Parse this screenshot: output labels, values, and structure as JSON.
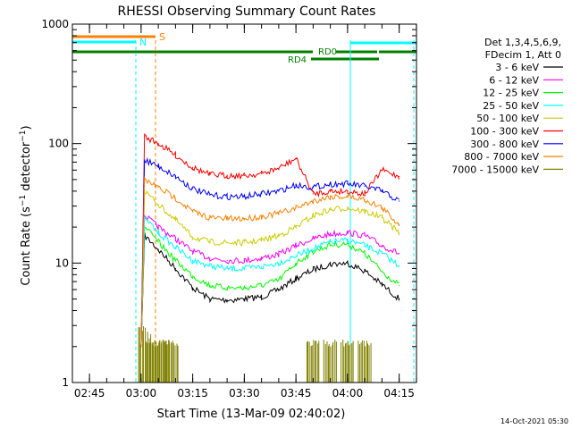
{
  "chart_data": {
    "type": "line",
    "title": "RHESSI Observing Summary Count Rates",
    "xlabel": "Start Time (13-Mar-09 02:40:02)",
    "ylabel": "Count Rate (s⁻¹ detector⁻¹)",
    "yscale": "log",
    "ylim": [
      1,
      1000
    ],
    "xlim_minutes": [
      0,
      100
    ],
    "x_ticks": [
      "02:45",
      "03:00",
      "03:15",
      "03:30",
      "03:45",
      "04:00",
      "04:15"
    ],
    "y_ticks": [
      "1",
      "10",
      "100",
      "1000"
    ],
    "legend": {
      "header": [
        "Det 1,3,4,5,6,9,",
        "FDecim 1, Att 0"
      ],
      "placement": "right"
    },
    "footer_timestamp": "14-Oct-2021 05:30",
    "flag_labels": {
      "S": "S",
      "N": "N",
      "RD0": "RD0",
      "RD4": "RD4"
    },
    "flag_colors": {
      "S": "#ff8000",
      "N": "#00ffff",
      "RD": "#008000"
    },
    "series": [
      {
        "name": "3 - 6 keV",
        "color": "#000000",
        "x": [
          "03:00",
          "03:01",
          "03:05",
          "03:10",
          "03:15",
          "03:20",
          "03:25",
          "03:30",
          "03:35",
          "03:40",
          "03:45",
          "03:50",
          "03:55",
          "04:00",
          "04:05",
          "04:10",
          "04:15"
        ],
        "y": [
          2.0,
          17,
          13,
          9,
          6.2,
          5.0,
          4.9,
          5.0,
          5.2,
          6.0,
          7.4,
          8.8,
          9.8,
          10.0,
          8.6,
          6.6,
          5.0
        ]
      },
      {
        "name": "6 - 12 keV",
        "color": "#ff00ff",
        "x": [
          "03:00",
          "03:01",
          "03:05",
          "03:10",
          "03:15",
          "03:20",
          "03:25",
          "03:30",
          "03:35",
          "03:40",
          "03:45",
          "03:50",
          "03:55",
          "04:00",
          "04:05",
          "04:10",
          "04:15"
        ],
        "y": [
          2.0,
          25,
          20,
          16,
          12.5,
          11,
          10.5,
          10.5,
          11,
          11.8,
          14,
          16,
          17.5,
          18,
          17,
          14,
          12
        ]
      },
      {
        "name": "12 - 25 keV",
        "color": "#00ff00",
        "x": [
          "03:00",
          "03:01",
          "03:05",
          "03:10",
          "03:15",
          "03:20",
          "03:25",
          "03:30",
          "03:35",
          "03:40",
          "03:45",
          "03:50",
          "03:55",
          "04:00",
          "04:05",
          "04:10",
          "04:15"
        ],
        "y": [
          2.0,
          20,
          15,
          10.5,
          7.8,
          6.5,
          6.2,
          6.2,
          6.5,
          7.2,
          10,
          12.5,
          14.2,
          14.5,
          12,
          8.5,
          6.5
        ]
      },
      {
        "name": "25 - 50 keV",
        "color": "#00ffff",
        "x": [
          "03:00",
          "03:01",
          "03:05",
          "03:10",
          "03:15",
          "03:20",
          "03:25",
          "03:30",
          "03:35",
          "03:40",
          "03:45",
          "03:50",
          "03:55",
          "04:00",
          "04:05",
          "04:10",
          "04:15"
        ],
        "y": [
          2.0,
          24,
          18,
          13.5,
          10.5,
          9.5,
          9.0,
          9.0,
          9.3,
          10,
          11.5,
          13.2,
          15,
          15.5,
          14,
          12,
          9.5
        ]
      },
      {
        "name": "50 - 100 keV",
        "color": "#cccc00",
        "x": [
          "03:00",
          "03:01",
          "03:05",
          "03:10",
          "03:15",
          "03:20",
          "03:25",
          "03:30",
          "03:35",
          "03:40",
          "03:45",
          "03:50",
          "03:55",
          "04:00",
          "04:05",
          "04:10",
          "04:15"
        ],
        "y": [
          2.0,
          40,
          31,
          23,
          16.5,
          15,
          14.8,
          14.8,
          15.5,
          17,
          20,
          25,
          28,
          29,
          27,
          24,
          18
        ]
      },
      {
        "name": "100 - 300 keV",
        "color": "#ff0000",
        "x": [
          "03:00",
          "03:01",
          "03:05",
          "03:10",
          "03:15",
          "03:20",
          "03:25",
          "03:30",
          "03:35",
          "03:40",
          "03:45",
          "03:50",
          "03:55",
          "04:00",
          "04:05",
          "04:10",
          "04:15"
        ],
        "y": [
          2.0,
          115,
          100,
          80,
          63,
          55,
          54,
          54,
          56,
          62,
          75,
          38,
          40,
          40,
          38,
          60,
          53
        ]
      },
      {
        "name": "300 - 800 keV",
        "color": "#0000ff",
        "x": [
          "03:00",
          "03:01",
          "03:05",
          "03:10",
          "03:15",
          "03:20",
          "03:25",
          "03:30",
          "03:35",
          "03:40",
          "03:45",
          "03:50",
          "03:55",
          "04:00",
          "04:05",
          "04:10",
          "04:15"
        ],
        "y": [
          2.0,
          73,
          65,
          53,
          42,
          37,
          36,
          36,
          38,
          40,
          45,
          43,
          46,
          46,
          44,
          40,
          33
        ]
      },
      {
        "name": "800 - 7000 keV",
        "color": "#ff8000",
        "x": [
          "03:00",
          "03:01",
          "03:05",
          "03:10",
          "03:15",
          "03:20",
          "03:25",
          "03:30",
          "03:35",
          "03:40",
          "03:45",
          "03:50",
          "03:55",
          "04:00",
          "04:05",
          "04:10",
          "04:15"
        ],
        "y": [
          2.0,
          50,
          43,
          35,
          27,
          24,
          23.5,
          23.5,
          24.5,
          26,
          29,
          33,
          36,
          36,
          34,
          29,
          21
        ]
      },
      {
        "name": "7000 - 15000 keV",
        "color": "#808000",
        "x": [
          "03:01",
          "03:03",
          "03:05",
          "03:07",
          "03:09",
          "03:50",
          "03:55",
          "04:00",
          "04:05"
        ],
        "y": [
          2.0,
          2.0,
          2.0,
          2.0,
          2.0,
          2.0,
          2.0,
          2.0,
          2.0
        ]
      }
    ]
  }
}
